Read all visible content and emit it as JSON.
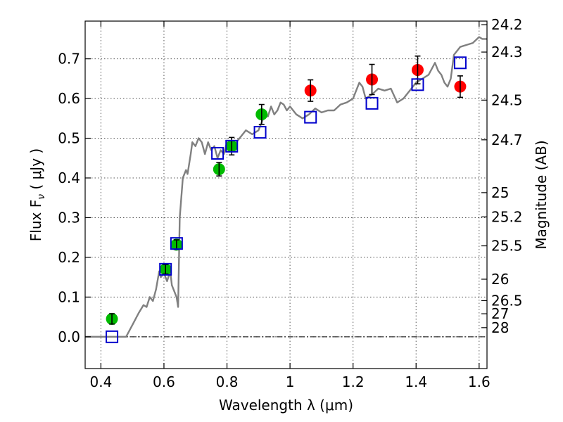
{
  "chart_data": {
    "type": "scatter",
    "xlabel": "Wavelength  λ (μm)",
    "ylabel": "Flux  F",
    "ylabel_sub": "ν",
    "ylabel_unit": "  ( μJy )",
    "y2label": "Magnitude (AB)",
    "xlim": [
      0.35,
      1.625
    ],
    "ylim": [
      -0.08,
      0.795
    ],
    "grid": true,
    "xticks": [
      0.4,
      0.6,
      0.8,
      1.0,
      1.2,
      1.4,
      1.6
    ],
    "xtick_labels": [
      "0.4",
      "0.6",
      "0.8",
      "1",
      "1.2",
      "1.4",
      "1.6"
    ],
    "yticks": [
      0.0,
      0.1,
      0.2,
      0.3,
      0.4,
      0.5,
      0.6,
      0.7
    ],
    "ytick_labels": [
      "0.0",
      "0.1",
      "0.2",
      "0.3",
      "0.4",
      "0.5",
      "0.6",
      "0.7"
    ],
    "mag_ticks": [
      {
        "label": "24.2",
        "flux": 0.786
      },
      {
        "label": "24.3",
        "flux": 0.717
      },
      {
        "label": "24.5",
        "flux": 0.596
      },
      {
        "label": "24.7",
        "flux": 0.496
      },
      {
        "label": "25",
        "flux": 0.363
      },
      {
        "label": "25.2",
        "flux": 0.302
      },
      {
        "label": "25.5",
        "flux": 0.229
      },
      {
        "label": "26",
        "flux": 0.145
      },
      {
        "label": "26.5",
        "flux": 0.091
      },
      {
        "label": "27",
        "flux": 0.058
      },
      {
        "label": "28",
        "flux": 0.023
      }
    ],
    "series": [
      {
        "marker": "line",
        "color": "#808080",
        "points": [
          [
            0.35,
            0.0
          ],
          [
            0.48,
            0.0
          ],
          [
            0.5,
            0.03
          ],
          [
            0.52,
            0.06
          ],
          [
            0.535,
            0.08
          ],
          [
            0.545,
            0.075
          ],
          [
            0.555,
            0.1
          ],
          [
            0.565,
            0.09
          ],
          [
            0.575,
            0.12
          ],
          [
            0.585,
            0.165
          ],
          [
            0.59,
            0.15
          ],
          [
            0.6,
            0.16
          ],
          [
            0.61,
            0.14
          ],
          [
            0.62,
            0.165
          ],
          [
            0.625,
            0.13
          ],
          [
            0.63,
            0.12
          ],
          [
            0.64,
            0.1
          ],
          [
            0.645,
            0.075
          ],
          [
            0.65,
            0.3
          ],
          [
            0.66,
            0.4
          ],
          [
            0.67,
            0.42
          ],
          [
            0.675,
            0.41
          ],
          [
            0.685,
            0.46
          ],
          [
            0.69,
            0.49
          ],
          [
            0.7,
            0.48
          ],
          [
            0.71,
            0.5
          ],
          [
            0.72,
            0.49
          ],
          [
            0.73,
            0.46
          ],
          [
            0.74,
            0.49
          ],
          [
            0.75,
            0.47
          ],
          [
            0.76,
            0.48
          ],
          [
            0.77,
            0.45
          ],
          [
            0.78,
            0.47
          ],
          [
            0.79,
            0.46
          ],
          [
            0.8,
            0.49
          ],
          [
            0.82,
            0.48
          ],
          [
            0.84,
            0.5
          ],
          [
            0.86,
            0.52
          ],
          [
            0.88,
            0.51
          ],
          [
            0.9,
            0.52
          ],
          [
            0.91,
            0.54
          ],
          [
            0.92,
            0.56
          ],
          [
            0.93,
            0.555
          ],
          [
            0.94,
            0.58
          ],
          [
            0.95,
            0.56
          ],
          [
            0.96,
            0.57
          ],
          [
            0.97,
            0.59
          ],
          [
            0.98,
            0.585
          ],
          [
            0.99,
            0.57
          ],
          [
            1.0,
            0.58
          ],
          [
            1.02,
            0.56
          ],
          [
            1.04,
            0.55
          ],
          [
            1.06,
            0.56
          ],
          [
            1.08,
            0.575
          ],
          [
            1.1,
            0.565
          ],
          [
            1.12,
            0.57
          ],
          [
            1.14,
            0.57
          ],
          [
            1.16,
            0.585
          ],
          [
            1.18,
            0.59
          ],
          [
            1.2,
            0.6
          ],
          [
            1.21,
            0.62
          ],
          [
            1.22,
            0.64
          ],
          [
            1.23,
            0.63
          ],
          [
            1.24,
            0.6
          ],
          [
            1.26,
            0.61
          ],
          [
            1.28,
            0.625
          ],
          [
            1.3,
            0.62
          ],
          [
            1.32,
            0.625
          ],
          [
            1.34,
            0.59
          ],
          [
            1.36,
            0.6
          ],
          [
            1.38,
            0.62
          ],
          [
            1.4,
            0.64
          ],
          [
            1.42,
            0.65
          ],
          [
            1.44,
            0.66
          ],
          [
            1.46,
            0.69
          ],
          [
            1.47,
            0.67
          ],
          [
            1.48,
            0.66
          ],
          [
            1.49,
            0.64
          ],
          [
            1.5,
            0.63
          ],
          [
            1.51,
            0.65
          ],
          [
            1.52,
            0.71
          ],
          [
            1.54,
            0.73
          ],
          [
            1.56,
            0.735
          ],
          [
            1.58,
            0.74
          ],
          [
            1.6,
            0.755
          ],
          [
            1.61,
            0.75
          ],
          [
            1.625,
            0.75
          ]
        ]
      },
      {
        "marker": "circle",
        "color": "#00bb00",
        "points": [
          {
            "x": 0.435,
            "y": 0.045,
            "err": 0.013
          },
          {
            "x": 0.605,
            "y": 0.17,
            "err": 0.012
          },
          {
            "x": 0.64,
            "y": 0.232,
            "err": 0.012
          },
          {
            "x": 0.775,
            "y": 0.422,
            "err": 0.017
          },
          {
            "x": 0.815,
            "y": 0.48,
            "err": 0.022
          },
          {
            "x": 0.91,
            "y": 0.56,
            "err": 0.025
          }
        ]
      },
      {
        "marker": "circle",
        "color": "#ff0000",
        "points": [
          {
            "x": 1.065,
            "y": 0.62,
            "err": 0.027
          },
          {
            "x": 1.26,
            "y": 0.648,
            "err": 0.038
          },
          {
            "x": 1.405,
            "y": 0.672,
            "err": 0.035
          },
          {
            "x": 1.54,
            "y": 0.63,
            "err": 0.027
          }
        ]
      },
      {
        "marker": "square",
        "color": "#0000cc",
        "points": [
          {
            "x": 0.435,
            "y": 0.0
          },
          {
            "x": 0.605,
            "y": 0.17
          },
          {
            "x": 0.64,
            "y": 0.235
          },
          {
            "x": 0.77,
            "y": 0.462
          },
          {
            "x": 0.815,
            "y": 0.48
          },
          {
            "x": 0.905,
            "y": 0.515
          },
          {
            "x": 1.065,
            "y": 0.553
          },
          {
            "x": 1.26,
            "y": 0.588
          },
          {
            "x": 1.405,
            "y": 0.635
          },
          {
            "x": 1.54,
            "y": 0.69
          }
        ]
      }
    ]
  }
}
